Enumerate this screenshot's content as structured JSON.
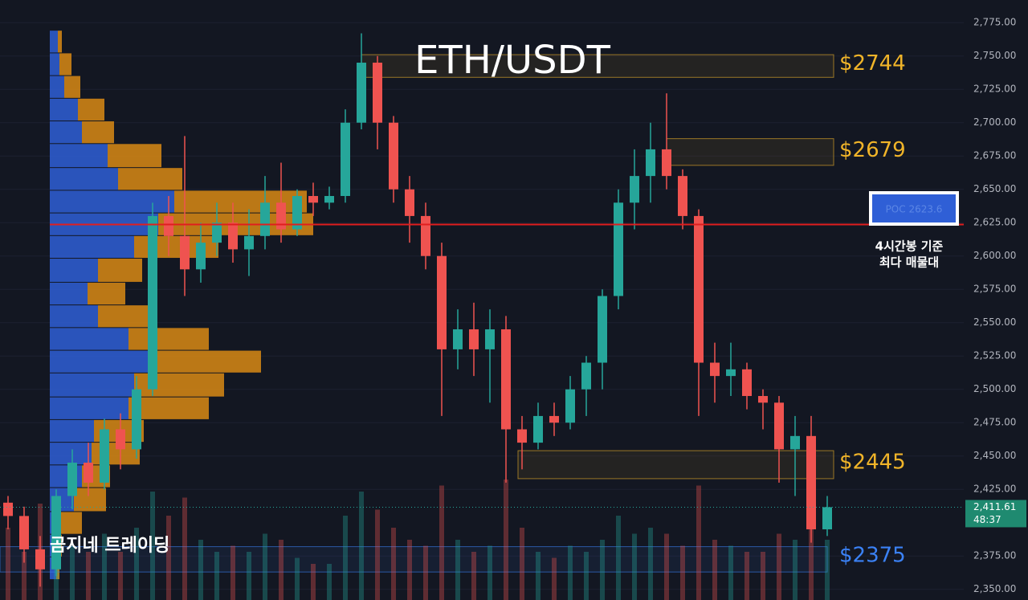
{
  "chart_data": {
    "type": "candlestick",
    "title": "ETH/USDT",
    "ylim": [
      2342,
      2792
    ],
    "yticks": [
      {
        "value": 2775,
        "label": "2,775.00"
      },
      {
        "value": 2750,
        "label": "2,750.00"
      },
      {
        "value": 2725,
        "label": "2,725.00"
      },
      {
        "value": 2700,
        "label": "2,700.00"
      },
      {
        "value": 2675,
        "label": "2,675.00"
      },
      {
        "value": 2650,
        "label": "2,650.00"
      },
      {
        "value": 2625,
        "label": "2,625.00"
      },
      {
        "value": 2600,
        "label": "2,600.00"
      },
      {
        "value": 2575,
        "label": "2,575.00"
      },
      {
        "value": 2550,
        "label": "2,550.00"
      },
      {
        "value": 2525,
        "label": "2,525.00"
      },
      {
        "value": 2500,
        "label": "2,500.00"
      },
      {
        "value": 2475,
        "label": "2,475.00"
      },
      {
        "value": 2450,
        "label": "2,450.00"
      },
      {
        "value": 2425,
        "label": "2,425.00"
      },
      {
        "value": 2375,
        "label": "2,375.00"
      },
      {
        "value": 2350,
        "label": "2,350.00"
      }
    ],
    "up_color": "#26a69a",
    "down_color": "#ef5350",
    "open": [
      2415,
      2405,
      2380,
      2365,
      2420,
      2445,
      2430,
      2470,
      2455,
      2500,
      2630,
      2615,
      2590,
      2610,
      2625,
      2605,
      2615,
      2640,
      2620,
      2645,
      2640,
      2645,
      2700,
      2745,
      2700,
      2650,
      2630,
      2600,
      2530,
      2545,
      2530,
      2545,
      2470,
      2460,
      2480,
      2475,
      2500,
      2520,
      2570,
      2640,
      2660,
      2680,
      2660,
      2630,
      2520,
      2510,
      2515,
      2495,
      2490,
      2455,
      2465,
      2395
    ],
    "high": [
      2420,
      2412,
      2390,
      2425,
      2455,
      2460,
      2478,
      2482,
      2510,
      2640,
      2645,
      2690,
      2625,
      2640,
      2640,
      2635,
      2660,
      2670,
      2650,
      2655,
      2652,
      2710,
      2767,
      2750,
      2705,
      2660,
      2640,
      2610,
      2560,
      2565,
      2560,
      2555,
      2480,
      2490,
      2490,
      2510,
      2525,
      2575,
      2650,
      2680,
      2700,
      2722,
      2665,
      2635,
      2535,
      2535,
      2520,
      2500,
      2495,
      2480,
      2480,
      2420
    ],
    "low": [
      2395,
      2370,
      2352,
      2360,
      2410,
      2420,
      2425,
      2440,
      2448,
      2495,
      2600,
      2570,
      2580,
      2600,
      2595,
      2585,
      2605,
      2610,
      2615,
      2630,
      2635,
      2640,
      2695,
      2680,
      2640,
      2610,
      2590,
      2480,
      2515,
      2510,
      2490,
      2430,
      2440,
      2455,
      2465,
      2470,
      2480,
      2500,
      2560,
      2620,
      2640,
      2650,
      2620,
      2480,
      2490,
      2495,
      2485,
      2470,
      2430,
      2420,
      2385,
      2390
    ],
    "close": [
      2405,
      2380,
      2365,
      2420,
      2445,
      2430,
      2470,
      2455,
      2500,
      2630,
      2615,
      2590,
      2610,
      2625,
      2605,
      2615,
      2640,
      2620,
      2645,
      2640,
      2645,
      2700,
      2745,
      2700,
      2650,
      2630,
      2600,
      2530,
      2545,
      2530,
      2545,
      2470,
      2460,
      2480,
      2475,
      2500,
      2520,
      2570,
      2640,
      2660,
      2680,
      2660,
      2630,
      2520,
      2510,
      2515,
      2495,
      2490,
      2455,
      2465,
      2395,
      2411.61
    ],
    "volume": [
      60,
      40,
      80,
      50,
      45,
      40,
      55,
      40,
      60,
      90,
      70,
      85,
      50,
      40,
      45,
      40,
      55,
      50,
      35,
      30,
      30,
      70,
      90,
      75,
      60,
      50,
      45,
      95,
      50,
      40,
      45,
      100,
      60,
      40,
      35,
      45,
      40,
      50,
      70,
      55,
      60,
      55,
      45,
      95,
      50,
      45,
      40,
      40,
      55,
      50,
      60,
      50
    ],
    "profile": {
      "bins": [
        2769,
        2752,
        2735,
        2718,
        2701,
        2684,
        2666,
        2649,
        2632,
        2615,
        2598,
        2580,
        2563,
        2546,
        2529,
        2512,
        2494,
        2477,
        2460,
        2443,
        2426,
        2408,
        2391,
        2374,
        2357
      ],
      "buy": [
        10,
        12,
        18,
        35,
        40,
        72,
        85,
        155,
        135,
        105,
        60,
        47,
        60,
        98,
        130,
        105,
        98,
        55,
        52,
        40,
        30,
        12,
        10,
        8
      ],
      "sell": [
        5,
        15,
        20,
        33,
        40,
        67,
        80,
        165,
        193,
        105,
        55,
        47,
        65,
        100,
        133,
        112,
        100,
        62,
        60,
        35,
        40,
        28,
        5,
        4
      ],
      "buy_color": "#2f5fd6",
      "sell_color": "#d98a14"
    },
    "zones": [
      {
        "label": "$2744",
        "value": 2744,
        "top": 2751,
        "bottom": 2734,
        "color": "#f0b429"
      },
      {
        "label": "$2679",
        "value": 2679,
        "top": 2688,
        "bottom": 2668,
        "color": "#f0b429"
      },
      {
        "label": "$2445",
        "value": 2445,
        "top": 2454,
        "bottom": 2433,
        "color": "#f0b429"
      },
      {
        "label": "$2375",
        "value": 2375,
        "top": 2382,
        "bottom": 2363,
        "color": "#3b82f6"
      }
    ],
    "poc": {
      "value": 2623.6,
      "label": "POC 2623.6",
      "color": "#e01e1e"
    },
    "poc_note": [
      "4시간봉 기준",
      "최다 매물대"
    ],
    "last_price": {
      "value": 2411.61,
      "label": "2,411.61",
      "countdown": "48:37"
    },
    "watermark": "곰지네 트레이딩"
  }
}
